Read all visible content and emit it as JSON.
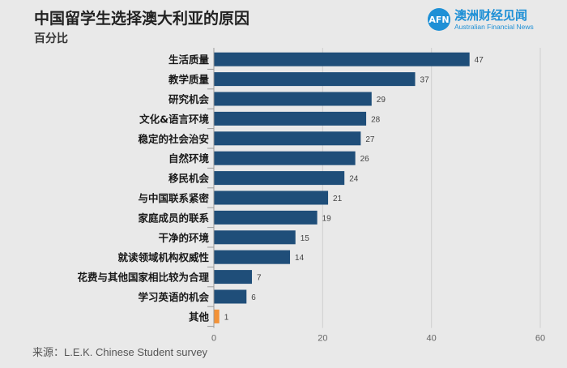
{
  "header": {
    "title": "中国留学生选择澳大利亚的原因",
    "subtitle": "百分比"
  },
  "logo": {
    "badge": "AFN",
    "name_cn": "澳洲财经见闻",
    "name_en": "Australian Financial News"
  },
  "source": "来源：L.E.K. Chinese Student survey",
  "colors": {
    "bar": "#1f4e79",
    "highlight": "#f39237",
    "grid": "#cfcfcf",
    "axis": "#9a9a9a"
  },
  "chart_data": {
    "type": "bar",
    "orientation": "horizontal",
    "categories": [
      "生活质量",
      "教学质量",
      "研究机会",
      "文化&语言环境",
      "稳定的社会治安",
      "自然环境",
      "移民机会",
      "与中国联系紧密",
      "家庭成员的联系",
      "干净的环境",
      "就读领域机构权威性",
      "花费与其他国家相比较为合理",
      "学习英语的机会",
      "其他"
    ],
    "values": [
      47,
      37,
      29,
      28,
      27,
      26,
      24,
      21,
      19,
      15,
      14,
      7,
      6,
      1
    ],
    "highlight_category": "其他",
    "xlim": [
      0,
      60
    ],
    "xticks": [
      0,
      20,
      40,
      60
    ],
    "title": "中国留学生选择澳大利亚的原因",
    "xlabel": "",
    "ylabel": "百分比",
    "grid": true,
    "data_labels": true
  }
}
